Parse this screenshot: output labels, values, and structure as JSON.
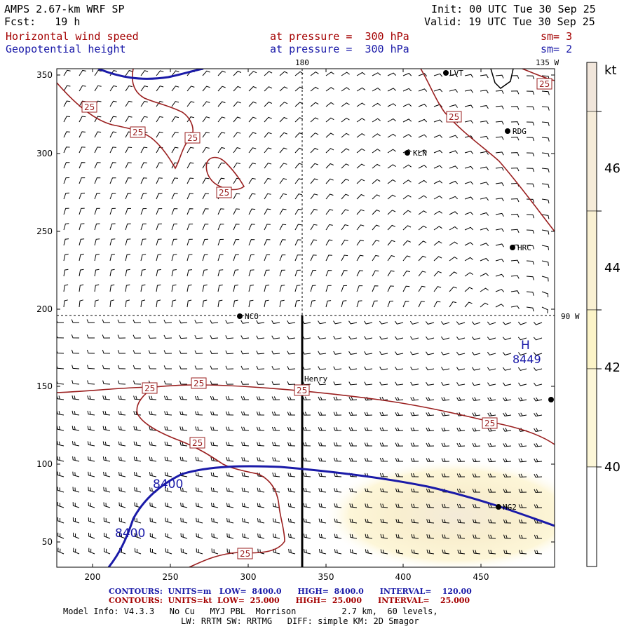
{
  "header": {
    "model": "AMPS 2.67-km WRF SP",
    "fcst": "Fcst:   19 h",
    "init": "Init: 00 UTC Tue 30 Sep 25",
    "valid": "Valid: 19 UTC Tue 30 Sep 25",
    "field1_name": "Horizontal wind speed",
    "field1_level": "at pressure =  300 hPa",
    "field1_sm": "sm= 3",
    "field2_name": "Geopotential height",
    "field2_level": "at pressure =  300 hPa",
    "field2_sm": "sm= 2"
  },
  "map": {
    "lon_labels": {
      "top_180": "180",
      "top_135w": "135 W",
      "right_90w": "90 W"
    },
    "y_axis_ticks": [
      "350",
      "300",
      "250",
      "200",
      "150",
      "100",
      "50"
    ],
    "x_axis_ticks": [
      "200",
      "250",
      "300",
      "350",
      "400",
      "450"
    ],
    "stations": [
      "LVT",
      "RDG",
      "KLN",
      "HRC",
      "NCO",
      "Henry",
      "HG2"
    ],
    "high_label": "H",
    "high_value": "8449",
    "height_contour_labels": [
      "8400",
      "8400"
    ],
    "speed_contour_label": "25",
    "colors": {
      "height": "#1a1aa8",
      "speed": "#9a1f1f",
      "shade": "#fdf3c4"
    }
  },
  "colorbar": {
    "unit": "kt",
    "ticks": [
      "46",
      "44",
      "42",
      "40"
    ],
    "colors": [
      "#f1e6db",
      "#f6ecd9",
      "#faf1d3",
      "#fcf4c8",
      "#fdf7d8",
      "#ffffff"
    ]
  },
  "footer": {
    "line1_label": "CONTOURS:  UNITS=m   LOW=  8400.0      HIGH=  8400.0      INTERVAL=    120.00",
    "line2_label": "CONTOURS:  UNITS=kt  LOW=  25.000      HIGH=  25.000      INTERVAL=    25.000",
    "model_info": "Model Info: V4.3.3   No Cu   MYJ PBL  Morrison         2.7 km,  60 levels,",
    "physics": "LW: RRTM SW: RRTMG   DIFF: simple KM: 2D Smagor"
  }
}
